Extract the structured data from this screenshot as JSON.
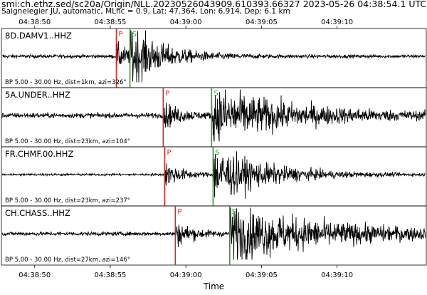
{
  "header": {
    "title": "smi:ch.ethz.sed/sc20a/Origin/NLL.20230526043909.610393.66327 2023-05-26 04:38:54.1 UTC",
    "subtitle": "Saignelegier JU, automatic, MLhc = 0.9, Lat: 47.364, Lon: 6.914, Dep: 6.1 km"
  },
  "chart_data": {
    "type": "line",
    "xlabel": "Time",
    "x_range": [
      "04:38:47.8",
      "04:39:15.9"
    ],
    "x_ticks": [
      "04:38:50",
      "04:38:55",
      "04:39:00",
      "04:39:05",
      "04:39:10"
    ],
    "grid": false,
    "colors": {
      "trace": "#000000",
      "p_pick": "#d62728",
      "s_pick": "#2ca02c"
    },
    "panels": [
      {
        "station": "8D.DAMV1..HHZ",
        "info": "BP 5.00 - 30.00 Hz, dist=1km, azi=326°",
        "p_pick": "04:38:55.4",
        "s_pick": "04:38:56.3",
        "p_label": "P",
        "s_label": "S",
        "noise": 0.06,
        "peak": 1.0,
        "decay_s": 2.2
      },
      {
        "station": "5A.UNDER..HHZ",
        "info": "BP 5.00 - 30.00 Hz, dist=23km, azi=104°",
        "p_pick": "04:38:58.5",
        "s_pick": "04:39:01.7",
        "p_label": "P",
        "s_label": "S",
        "noise": 0.09,
        "peak": 1.0,
        "decay_s": 5.5
      },
      {
        "station": "FR.CHMF.00.HHZ",
        "info": "BP 5.00 - 30.00 Hz, dist=23km, azi=237°",
        "p_pick": "04:38:58.6",
        "s_pick": "04:39:01.8",
        "p_label": "P",
        "s_label": "S",
        "noise": 0.04,
        "peak": 1.0,
        "decay_s": 3.5
      },
      {
        "station": "CH.CHASS..HHZ",
        "info": "BP 5.00 - 30.00 Hz, dist=27km, azi=146°",
        "p_pick": "04:38:59.3",
        "s_pick": "04:39:02.9",
        "p_label": "P",
        "s_label": "S",
        "noise": 0.07,
        "peak": 1.0,
        "decay_s": 7.0
      }
    ]
  }
}
